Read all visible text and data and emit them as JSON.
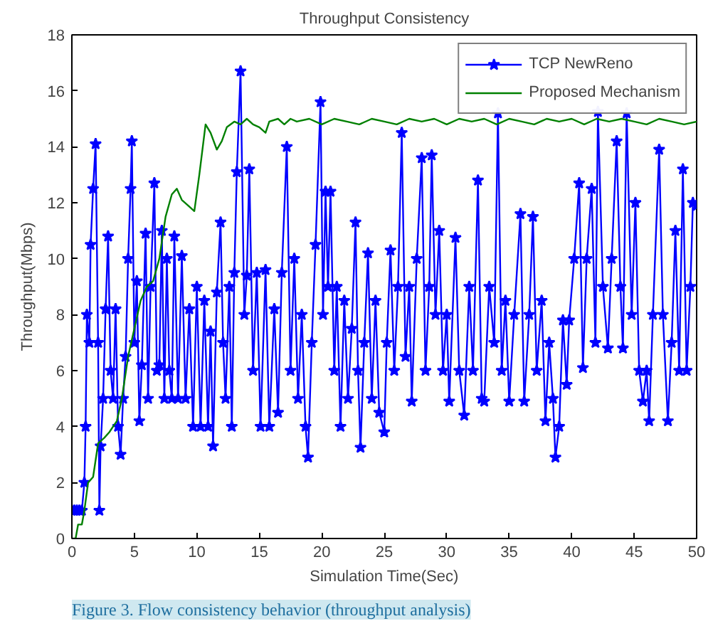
{
  "chart_data": {
    "type": "line",
    "title": "Throughput Consistency",
    "xlabel": "Simulation Time(Sec)",
    "ylabel": "Throughput(Mbps)",
    "xlim": [
      0,
      50
    ],
    "xticks": [
      0,
      5,
      10,
      15,
      20,
      25,
      30,
      35,
      40,
      45,
      50
    ],
    "ylim": [
      0,
      18
    ],
    "yticks": [
      0,
      2,
      4,
      6,
      8,
      10,
      12,
      14,
      16,
      18
    ],
    "grid": false,
    "legend": "top right",
    "line_style": "solid",
    "annotations": [
      "Figure 3. Flow consistency behavior (throughput analysis)"
    ],
    "series": [
      {
        "name": "TCP NewReno",
        "color": "#0000ff",
        "marker": "star",
        "x": [
          0,
          0.2,
          0.4,
          0.6,
          0.8,
          1.0,
          1.1,
          1.2,
          1.4,
          1.5,
          1.7,
          1.9,
          2.1,
          2.2,
          2.3,
          2.5,
          2.7,
          2.9,
          3.1,
          3.3,
          3.5,
          3.7,
          3.9,
          4.1,
          4.3,
          4.5,
          4.7,
          4.8,
          5.0,
          5.2,
          5.4,
          5.6,
          5.9,
          6.1,
          6.3,
          6.6,
          6.8,
          7.0,
          7.2,
          7.4,
          7.6,
          7.8,
          8.0,
          8.2,
          8.5,
          8.8,
          9.1,
          9.4,
          9.7,
          10.0,
          10.3,
          10.6,
          10.9,
          11.1,
          11.3,
          11.6,
          11.9,
          12.1,
          12.3,
          12.6,
          12.8,
          13.0,
          13.2,
          13.5,
          13.8,
          14.0,
          14.2,
          14.5,
          14.8,
          15.1,
          15.5,
          15.8,
          16.2,
          16.5,
          16.8,
          17.2,
          17.5,
          17.8,
          18.1,
          18.4,
          18.7,
          18.9,
          19.2,
          19.5,
          19.9,
          20.1,
          20.3,
          20.5,
          20.7,
          21.0,
          21.2,
          21.5,
          21.8,
          22.1,
          22.4,
          22.7,
          22.9,
          23.1,
          23.4,
          23.7,
          24.0,
          24.3,
          24.6,
          25.0,
          25.2,
          25.5,
          25.8,
          26.1,
          26.4,
          26.7,
          27.0,
          27.2,
          27.6,
          28.0,
          28.3,
          28.6,
          28.8,
          29.1,
          29.4,
          29.7,
          30.0,
          30.2,
          30.7,
          31.0,
          31.4,
          31.8,
          32.1,
          32.5,
          32.8,
          33.0,
          33.4,
          33.8,
          34.1,
          34.4,
          34.7,
          35.0,
          35.4,
          35.9,
          36.2,
          36.6,
          36.9,
          37.2,
          37.6,
          37.9,
          38.2,
          38.5,
          38.7,
          39.0,
          39.3,
          39.6,
          39.8,
          40.2,
          40.6,
          40.9,
          41.2,
          41.6,
          41.9,
          42.1,
          42.5,
          42.9,
          43.2,
          43.6,
          43.9,
          44.1,
          44.4,
          44.8,
          45.1,
          45.4,
          45.7,
          46.0,
          46.2,
          46.5,
          47.0,
          47.3,
          47.7,
          48.0,
          48.3,
          48.6,
          48.9,
          49.2,
          49.5,
          49.7,
          50
        ],
        "values": [
          1,
          1,
          1,
          1,
          1,
          2,
          4,
          8,
          7,
          10.5,
          12.5,
          14.1,
          7,
          1,
          3.3,
          5,
          8.2,
          10.8,
          6,
          5,
          8.2,
          4,
          3,
          5,
          6.5,
          10,
          12.5,
          14.2,
          7,
          9.2,
          4.2,
          6.2,
          10.9,
          5,
          9,
          12.7,
          6,
          6.2,
          11,
          5,
          10,
          6,
          5,
          10.8,
          5,
          10.1,
          5,
          8.2,
          4,
          9,
          4,
          8.5,
          4,
          7.4,
          3.3,
          8.8,
          11.3,
          7,
          5,
          9,
          4,
          9.5,
          13.1,
          16.7,
          8,
          9.4,
          13.2,
          6,
          9.5,
          4,
          9.6,
          4,
          8.2,
          4.5,
          9.5,
          14,
          6,
          10,
          5,
          8,
          4,
          2.9,
          7,
          10.5,
          15.6,
          8,
          12.4,
          9,
          12.4,
          6,
          9,
          4,
          8.5,
          5,
          7.5,
          11.3,
          6,
          3.25,
          7,
          10.2,
          5,
          8.5,
          4.5,
          3.8,
          7,
          10.3,
          6,
          9,
          14.5,
          6.5,
          9,
          4.9,
          10,
          13.6,
          6,
          9,
          13.7,
          8,
          11,
          6,
          8,
          4.9,
          10.75,
          6,
          4.4,
          9,
          6,
          12.8,
          5,
          4.9,
          9,
          7,
          15.2,
          6,
          8.5,
          4.9,
          8,
          11.6,
          4.9,
          8,
          11.5,
          6,
          8.5,
          4.2,
          7,
          5,
          2.9,
          4,
          7.8,
          5.5,
          7.8,
          10,
          12.7,
          6.1,
          10,
          12.5,
          7,
          15.25,
          9,
          6.8,
          10,
          14.2,
          9,
          6.8,
          15.2,
          8,
          12,
          6,
          4.9,
          6,
          4.2,
          8,
          13.9,
          8,
          4.2,
          7,
          11,
          6,
          13.2,
          6,
          9,
          12,
          11.9
        ]
      },
      {
        "name": "Proposed Mechanism",
        "color": "#008000",
        "marker": "none",
        "x": [
          0,
          0.3,
          0.5,
          0.8,
          1.0,
          1.3,
          1.7,
          2.1,
          2.6,
          3.0,
          3.3,
          3.6,
          4.0,
          4.5,
          5.0,
          5.5,
          6.0,
          6.5,
          7.0,
          7.5,
          8.0,
          8.4,
          8.8,
          9.3,
          9.8,
          10.2,
          10.7,
          11.1,
          11.6,
          12.0,
          12.4,
          13.0,
          13.5,
          14.0,
          14.5,
          15.0,
          15.5,
          15.8,
          16.5,
          17,
          17.5,
          18,
          19,
          20,
          21,
          22,
          23,
          24,
          25,
          26,
          27,
          28,
          29,
          30,
          31,
          32,
          33,
          34,
          35,
          36,
          37,
          38,
          39,
          40,
          41,
          42,
          43,
          44,
          45,
          46,
          47,
          48,
          49,
          50
        ],
        "values": [
          0,
          0,
          0.5,
          0.5,
          1,
          2,
          2.2,
          3.4,
          3.6,
          3.8,
          4,
          4.2,
          5,
          6.5,
          7.5,
          8.5,
          9,
          9.2,
          10,
          11.5,
          12.3,
          12.5,
          12.1,
          11.9,
          11.7,
          13,
          14.8,
          14.5,
          13.9,
          14.2,
          14.7,
          14.9,
          14.8,
          15,
          14.8,
          14.7,
          14.5,
          14.9,
          15,
          14.8,
          15,
          14.9,
          15,
          14.8,
          15,
          14.9,
          14.8,
          15,
          14.9,
          14.8,
          15,
          14.9,
          15,
          14.8,
          15,
          14.9,
          15,
          14.8,
          15,
          14.9,
          14.8,
          15,
          14.9,
          15,
          14.8,
          15,
          14.9,
          15,
          14.9,
          14.8,
          15,
          14.9,
          14.8,
          14.9
        ]
      }
    ]
  }
}
